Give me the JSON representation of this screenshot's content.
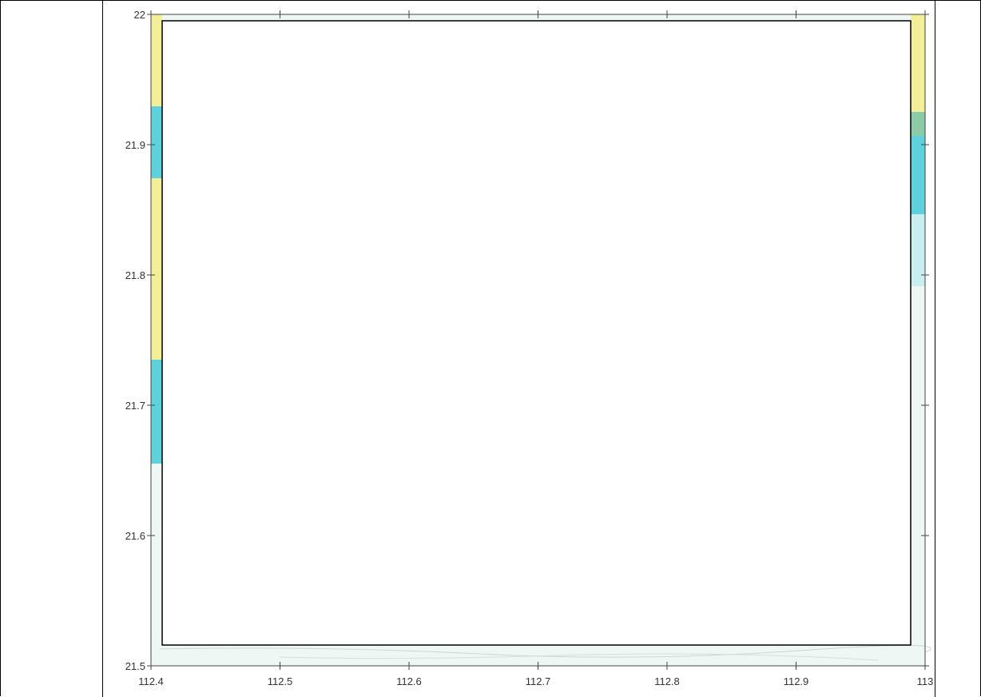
{
  "map": {
    "x_ticks": [
      "112.4",
      "112.5",
      "112.6",
      "112.7",
      "112.8",
      "112.9",
      "113"
    ],
    "y_ticks": [
      "22",
      "21.9",
      "21.8",
      "21.7",
      "21.6",
      "21.5"
    ],
    "colors": {
      "land": "#f2ef98",
      "shallow_water": "#5ed1dd",
      "deep_water": "#c9eef2",
      "pale_sea": "#eef7f4",
      "overlay_box": "#ffffff"
    }
  }
}
